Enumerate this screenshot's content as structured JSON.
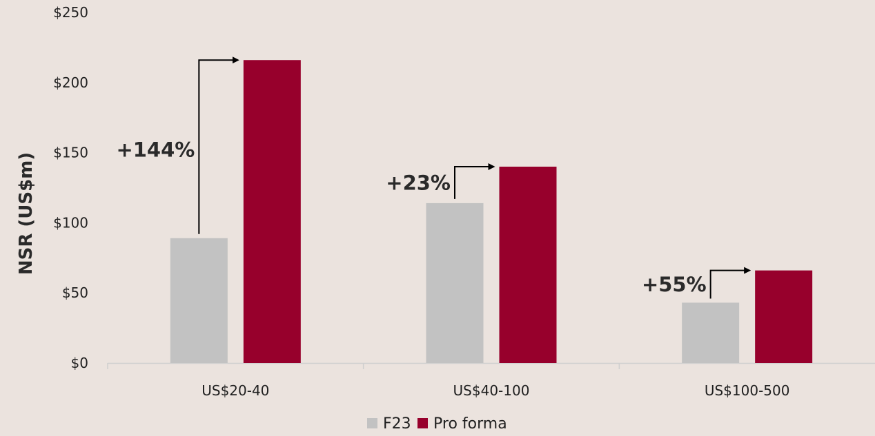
{
  "chart_data": {
    "type": "bar",
    "title": "",
    "xlabel": "",
    "ylabel": "NSR (US$m)",
    "ylim": [
      0,
      250
    ],
    "y_ticks": [
      "$0",
      "$50",
      "$100",
      "$150",
      "$200",
      "$250"
    ],
    "y_tick_values": [
      0,
      50,
      100,
      150,
      200,
      250
    ],
    "categories": [
      "US$20-40",
      "US$40-100",
      "US$100-500"
    ],
    "series": [
      {
        "name": "F23",
        "values": [
          89,
          114,
          43
        ]
      },
      {
        "name": "Pro forma",
        "values": [
          216,
          140,
          66
        ]
      }
    ],
    "annotations": [
      "+144%",
      "+23%",
      "+55%"
    ],
    "colors": {
      "F23": "#c2c2c2",
      "Pro forma": "#97002c",
      "background": "#ebe3de",
      "axis": "#cfcfcf",
      "arrow": "#000000"
    },
    "grid": false,
    "legend_position": "bottom-center"
  }
}
